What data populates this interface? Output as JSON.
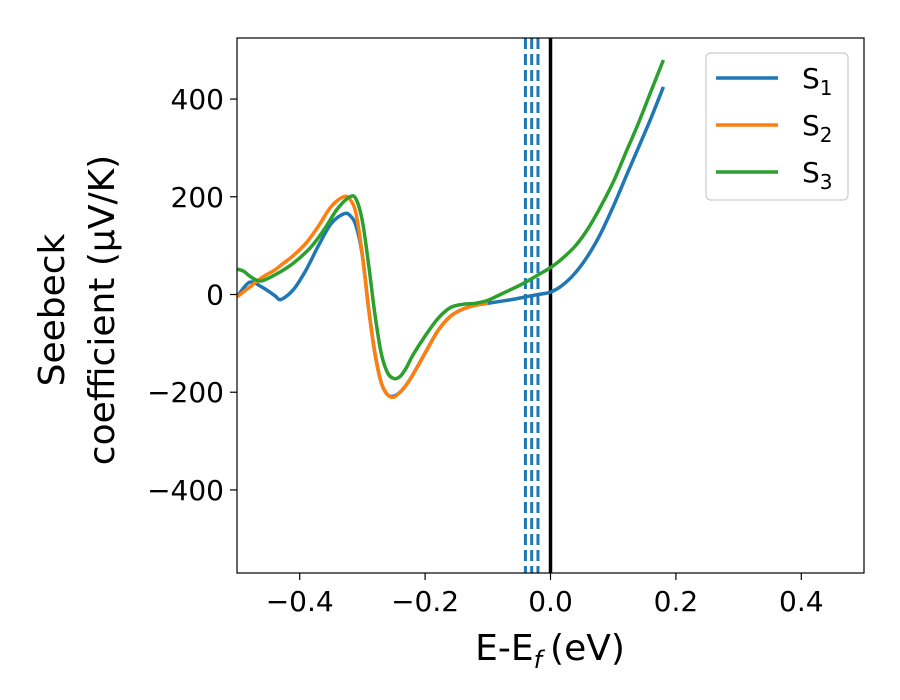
{
  "chart_data": {
    "type": "line",
    "xlabel": "E-E",
    "xlabel_sub": "f",
    "xlabel_unit": "(eV)",
    "ylabel_line1": "Seebeck",
    "ylabel_line2": "coefficient  (μV/K)",
    "xlim": [
      -0.5,
      0.5
    ],
    "ylim": [
      -570,
      525
    ],
    "xticks": [
      -0.4,
      -0.2,
      0.0,
      0.2,
      0.4
    ],
    "xtick_labels": [
      "−0.4",
      "−0.2",
      "0.0",
      "0.2",
      "0.4"
    ],
    "yticks": [
      -400,
      -200,
      0,
      200,
      400
    ],
    "ytick_labels": [
      "−400",
      "−200",
      "0",
      "200",
      "400"
    ],
    "grid": false,
    "legend_position": "top-right",
    "vertical_lines": {
      "solid": {
        "x": 0.0,
        "color": "#000000"
      },
      "dashed": {
        "x": [
          -0.04,
          -0.03,
          -0.02
        ],
        "color": "#1f77b4"
      }
    },
    "series": [
      {
        "name": "S",
        "sub": "1",
        "color": "#1f77b4",
        "x": [
          -0.5,
          -0.48,
          -0.46,
          -0.44,
          -0.43,
          -0.41,
          -0.39,
          -0.37,
          -0.35,
          -0.33,
          -0.32,
          -0.31,
          -0.3,
          -0.29,
          -0.28,
          -0.27,
          -0.26,
          -0.25,
          -0.24,
          -0.23,
          -0.22,
          -0.2,
          -0.18,
          -0.16,
          -0.14,
          -0.12,
          -0.1,
          -0.08,
          -0.06,
          -0.04,
          -0.02,
          0.0,
          0.02,
          0.04,
          0.06,
          0.08,
          0.1,
          0.12,
          0.14,
          0.16,
          0.18
        ],
        "values": [
          -5,
          25,
          15,
          -2,
          -10,
          10,
          50,
          100,
          145,
          165,
          162,
          140,
          80,
          -30,
          -120,
          -180,
          -205,
          -208,
          -200,
          -185,
          -165,
          -120,
          -75,
          -45,
          -30,
          -22,
          -18,
          -14,
          -10,
          -5,
          0,
          5,
          20,
          45,
          80,
          125,
          180,
          240,
          300,
          360,
          425
        ]
      },
      {
        "name": "S",
        "sub": "2",
        "color": "#ff7f0e",
        "x": [
          -0.5,
          -0.48,
          -0.46,
          -0.44,
          -0.43,
          -0.41,
          -0.39,
          -0.37,
          -0.35,
          -0.33,
          -0.32,
          -0.31,
          -0.3,
          -0.29,
          -0.28,
          -0.27,
          -0.26,
          -0.25,
          -0.24,
          -0.23,
          -0.22,
          -0.2,
          -0.18,
          -0.16,
          -0.14,
          -0.12,
          -0.1
        ],
        "values": [
          -5,
          15,
          35,
          50,
          60,
          80,
          105,
          140,
          180,
          200,
          195,
          165,
          80,
          -30,
          -120,
          -180,
          -205,
          -210,
          -200,
          -185,
          -165,
          -120,
          -75,
          -45,
          -30,
          -22,
          -18
        ]
      },
      {
        "name": "S",
        "sub": "3",
        "color": "#2ca02c",
        "x": [
          -0.5,
          -0.49,
          -0.48,
          -0.47,
          -0.46,
          -0.44,
          -0.42,
          -0.4,
          -0.38,
          -0.36,
          -0.34,
          -0.32,
          -0.31,
          -0.3,
          -0.29,
          -0.28,
          -0.27,
          -0.26,
          -0.25,
          -0.24,
          -0.23,
          -0.22,
          -0.2,
          -0.18,
          -0.16,
          -0.14,
          -0.12,
          -0.1,
          -0.08,
          -0.06,
          -0.04,
          -0.02,
          0.0,
          0.02,
          0.04,
          0.06,
          0.08,
          0.1,
          0.12,
          0.14,
          0.16,
          0.18
        ],
        "values": [
          52,
          48,
          38,
          30,
          28,
          40,
          55,
          75,
          100,
          135,
          175,
          200,
          195,
          150,
          60,
          -40,
          -120,
          -160,
          -172,
          -168,
          -150,
          -125,
          -85,
          -50,
          -27,
          -20,
          -18,
          -12,
          0,
          12,
          25,
          40,
          55,
          75,
          100,
          135,
          180,
          230,
          290,
          350,
          415,
          480
        ]
      }
    ]
  }
}
